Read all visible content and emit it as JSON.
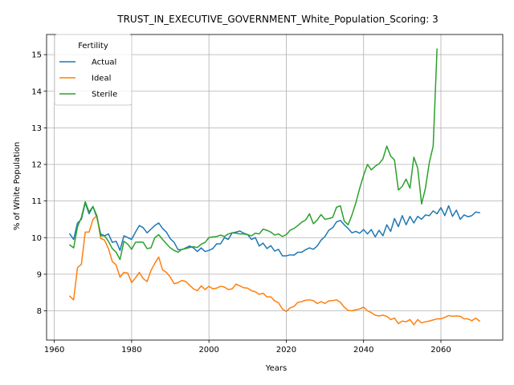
{
  "chart_data": {
    "type": "line",
    "title": "TRUST_IN_EXECUTIVE_GOVERNMENT_White_Population_Scoring: 3",
    "xlabel": "Years",
    "ylabel": "% of White Population",
    "xlim": [
      1958,
      2076
    ],
    "ylim": [
      7.2,
      15.55
    ],
    "xticks": [
      1960,
      1980,
      2000,
      2020,
      2040,
      2060
    ],
    "yticks": [
      8,
      9,
      10,
      11,
      12,
      13,
      14,
      15
    ],
    "grid": true,
    "legend": {
      "title": "Fertility",
      "placement": "top-left"
    },
    "series": [
      {
        "name": "Actual",
        "color": "#1f77b4",
        "x": [
          1964,
          1965,
          1966,
          1967,
          1968,
          1969,
          1970,
          1971,
          1972,
          1973,
          1974,
          1975,
          1976,
          1977,
          1978,
          1979,
          1980,
          1981,
          1982,
          1983,
          1984,
          1985,
          1986,
          1987,
          1988,
          1989,
          1990,
          1991,
          1992,
          1993,
          1994,
          1995,
          1996,
          1997,
          1998,
          1999,
          2000,
          2001,
          2002,
          2003,
          2004,
          2005,
          2006,
          2007,
          2008,
          2009,
          2010,
          2011,
          2012,
          2013,
          2014,
          2015,
          2016,
          2017,
          2018,
          2019,
          2020,
          2021,
          2022,
          2023,
          2024,
          2025,
          2026,
          2027,
          2028,
          2029,
          2030,
          2031,
          2032,
          2033,
          2034,
          2035,
          2036,
          2037,
          2038,
          2039,
          2040,
          2041,
          2042,
          2043,
          2044,
          2045,
          2046,
          2047,
          2048,
          2049,
          2050,
          2051,
          2052,
          2053,
          2054,
          2055,
          2056,
          2057,
          2058,
          2059,
          2060,
          2061,
          2062,
          2063,
          2064,
          2065,
          2066,
          2067,
          2068,
          2069,
          2070
        ],
        "values": [
          10.1,
          9.95,
          10.4,
          10.5,
          10.95,
          10.65,
          10.85,
          10.55,
          10.1,
          10.05,
          10.1,
          9.87,
          9.9,
          9.65,
          10.05,
          10.0,
          9.95,
          10.15,
          10.33,
          10.27,
          10.13,
          10.23,
          10.33,
          10.4,
          10.25,
          10.15,
          9.97,
          9.87,
          9.67,
          9.67,
          9.72,
          9.77,
          9.72,
          9.62,
          9.72,
          9.62,
          9.65,
          9.7,
          9.83,
          9.83,
          10.0,
          9.95,
          10.13,
          10.15,
          10.18,
          10.12,
          10.08,
          9.95,
          10.0,
          9.77,
          9.85,
          9.7,
          9.78,
          9.63,
          9.68,
          9.5,
          9.5,
          9.53,
          9.52,
          9.6,
          9.6,
          9.67,
          9.72,
          9.68,
          9.77,
          9.93,
          10.03,
          10.2,
          10.27,
          10.43,
          10.47,
          10.35,
          10.25,
          10.13,
          10.17,
          10.12,
          10.22,
          10.1,
          10.22,
          10.02,
          10.2,
          10.05,
          10.35,
          10.17,
          10.52,
          10.3,
          10.6,
          10.35,
          10.58,
          10.4,
          10.58,
          10.5,
          10.62,
          10.6,
          10.73,
          10.65,
          10.82,
          10.6,
          10.87,
          10.58,
          10.75,
          10.5,
          10.62,
          10.57,
          10.6,
          10.7,
          10.68
        ]
      },
      {
        "name": "Ideal",
        "color": "#ff7f0e",
        "x": [
          1964,
          1965,
          1966,
          1967,
          1968,
          1969,
          1970,
          1971,
          1972,
          1973,
          1974,
          1975,
          1976,
          1977,
          1978,
          1979,
          1980,
          1981,
          1982,
          1983,
          1984,
          1985,
          1986,
          1987,
          1988,
          1989,
          1990,
          1991,
          1992,
          1993,
          1994,
          1995,
          1996,
          1997,
          1998,
          1999,
          2000,
          2001,
          2002,
          2003,
          2004,
          2005,
          2006,
          2007,
          2008,
          2009,
          2010,
          2011,
          2012,
          2013,
          2014,
          2015,
          2016,
          2017,
          2018,
          2019,
          2020,
          2021,
          2022,
          2023,
          2024,
          2025,
          2026,
          2027,
          2028,
          2029,
          2030,
          2031,
          2032,
          2033,
          2034,
          2035,
          2036,
          2037,
          2038,
          2039,
          2040,
          2041,
          2042,
          2043,
          2044,
          2045,
          2046,
          2047,
          2048,
          2049,
          2050,
          2051,
          2052,
          2053,
          2054,
          2055,
          2056,
          2057,
          2058,
          2059,
          2060,
          2061,
          2062,
          2063,
          2064,
          2065,
          2066,
          2067,
          2068,
          2069,
          2070
        ],
        "values": [
          8.4,
          8.3,
          9.18,
          9.27,
          10.15,
          10.15,
          10.5,
          10.6,
          9.98,
          9.93,
          9.7,
          9.35,
          9.25,
          8.92,
          9.05,
          9.03,
          8.77,
          8.9,
          9.05,
          8.88,
          8.8,
          9.1,
          9.3,
          9.47,
          9.12,
          9.05,
          8.92,
          8.74,
          8.77,
          8.83,
          8.8,
          8.7,
          8.6,
          8.55,
          8.68,
          8.58,
          8.67,
          8.6,
          8.62,
          8.67,
          8.65,
          8.58,
          8.6,
          8.73,
          8.68,
          8.63,
          8.62,
          8.55,
          8.52,
          8.45,
          8.48,
          8.38,
          8.38,
          8.27,
          8.22,
          8.05,
          7.98,
          8.08,
          8.12,
          8.23,
          8.25,
          8.29,
          8.3,
          8.28,
          8.2,
          8.25,
          8.2,
          8.27,
          8.28,
          8.3,
          8.23,
          8.1,
          8.01,
          8.0,
          8.03,
          8.05,
          8.1,
          8.0,
          7.95,
          7.88,
          7.86,
          7.88,
          7.85,
          7.76,
          7.8,
          7.65,
          7.72,
          7.7,
          7.76,
          7.62,
          7.76,
          7.67,
          7.7,
          7.72,
          7.75,
          7.78,
          7.78,
          7.82,
          7.87,
          7.85,
          7.86,
          7.85,
          7.78,
          7.78,
          7.73,
          7.8,
          7.72
        ]
      },
      {
        "name": "Sterile",
        "color": "#2ca02c",
        "x": [
          1964,
          1965,
          1966,
          1967,
          1968,
          1969,
          1970,
          1971,
          1972,
          1973,
          1974,
          1975,
          1976,
          1977,
          1978,
          1979,
          1980,
          1981,
          1982,
          1983,
          1984,
          1985,
          1986,
          1987,
          1988,
          1989,
          1990,
          1991,
          1992,
          1993,
          1994,
          1995,
          1996,
          1997,
          1998,
          1999,
          2000,
          2001,
          2002,
          2003,
          2004,
          2005,
          2006,
          2007,
          2008,
          2009,
          2010,
          2011,
          2012,
          2013,
          2014,
          2015,
          2016,
          2017,
          2018,
          2019,
          2020,
          2021,
          2022,
          2023,
          2024,
          2025,
          2026,
          2027,
          2028,
          2029,
          2030,
          2031,
          2032,
          2033,
          2034,
          2035,
          2036,
          2037,
          2038,
          2039,
          2040,
          2041,
          2042,
          2043,
          2044,
          2045,
          2046,
          2047,
          2048,
          2049,
          2050,
          2051,
          2052,
          2053,
          2054,
          2055,
          2056,
          2057,
          2058,
          2059
        ],
        "values": [
          9.8,
          9.72,
          10.3,
          10.55,
          10.98,
          10.7,
          10.85,
          10.6,
          10.05,
          10.05,
          9.9,
          9.7,
          9.6,
          9.4,
          9.9,
          9.82,
          9.68,
          9.87,
          9.88,
          9.87,
          9.7,
          9.72,
          10.0,
          10.08,
          9.95,
          9.83,
          9.72,
          9.65,
          9.6,
          9.68,
          9.7,
          9.73,
          9.75,
          9.73,
          9.82,
          9.87,
          10.0,
          10.02,
          10.03,
          10.07,
          10.03,
          10.1,
          10.13,
          10.12,
          10.1,
          10.1,
          10.08,
          10.05,
          10.12,
          10.1,
          10.23,
          10.2,
          10.15,
          10.07,
          10.1,
          10.03,
          10.08,
          10.2,
          10.25,
          10.33,
          10.42,
          10.48,
          10.65,
          10.38,
          10.48,
          10.63,
          10.5,
          10.52,
          10.55,
          10.83,
          10.87,
          10.45,
          10.35,
          10.62,
          10.95,
          11.35,
          11.7,
          12.0,
          11.85,
          11.95,
          12.02,
          12.15,
          12.5,
          12.23,
          12.12,
          11.3,
          11.4,
          11.6,
          11.35,
          12.2,
          11.9,
          10.92,
          11.35,
          12.05,
          12.5,
          15.15
        ]
      }
    ]
  }
}
